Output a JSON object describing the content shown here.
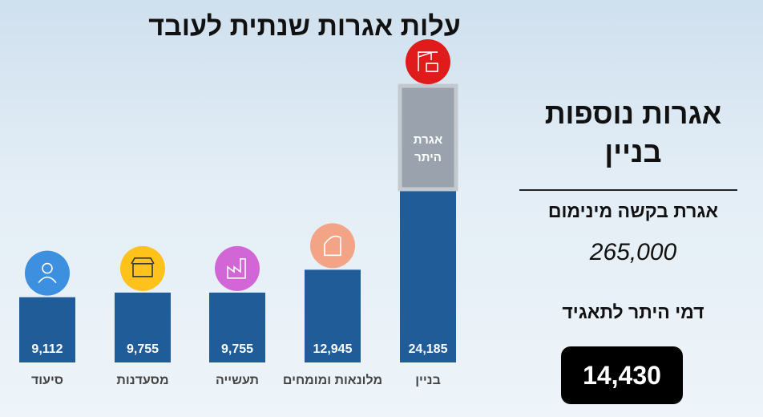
{
  "chart_data": {
    "type": "bar",
    "title": "עלות אגרות שנתית לעובד",
    "categories": [
      "סיעוד",
      "מסעדנות",
      "תעשייה",
      "מלונאות ומומחים",
      "בניין"
    ],
    "values": [
      9112,
      9755,
      9755,
      12945,
      24185
    ],
    "value_labels": [
      "9,112",
      "9,755",
      "9,755",
      "12,945",
      "24,185"
    ],
    "overlay": {
      "category": "בניין",
      "label_lines": [
        "אגרת",
        "היתר"
      ],
      "value": 14430
    },
    "ylim": [
      0,
      45000
    ],
    "bar_color": "#1f5c98",
    "overlay_color": "#9aa3ad",
    "icon_colors": [
      "#3d8fe0",
      "#ffc21a",
      "#d266d6",
      "#f4a486",
      "#e01b1b"
    ],
    "icons": [
      "caregiver-icon",
      "restaurant-icon",
      "factory-icon",
      "hotel-icon",
      "construction-icon"
    ]
  },
  "side": {
    "heading_line1": "אגרות נוספות",
    "heading_line2": "בניין",
    "sub1": "אגרת בקשה מינימום",
    "amount": "265,000",
    "sub2": "דמי היתר לתאגיד",
    "box_value": "14,430"
  }
}
